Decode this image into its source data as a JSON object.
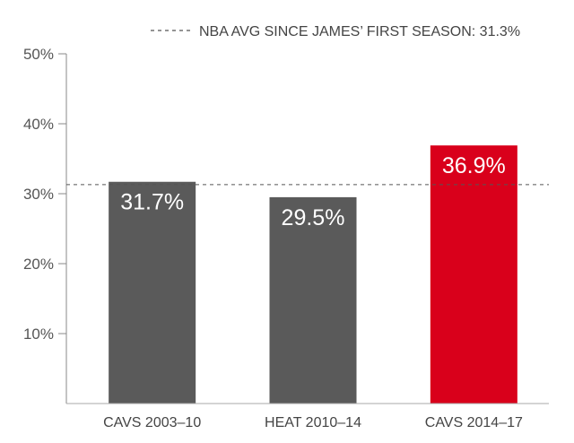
{
  "chart_data": {
    "type": "bar",
    "categories": [
      "CAVS 2003–10",
      "HEAT 2010–14",
      "CAVS 2014–17"
    ],
    "values": [
      31.7,
      29.5,
      36.9
    ],
    "value_labels": [
      "31.7%",
      "29.5%",
      "36.9%"
    ],
    "colors": [
      "#5a5a5a",
      "#5a5a5a",
      "#d9001b"
    ],
    "ylim": [
      0,
      50
    ],
    "yticks": [
      10,
      20,
      30,
      40,
      50
    ],
    "ytick_labels": [
      "10%",
      "20%",
      "30%",
      "40%",
      "50%"
    ],
    "reference_line": {
      "value": 31.3,
      "label": "NBA AVG SINCE JAMES’ FIRST SEASON: 31.3%",
      "style": "dashed"
    },
    "legend_placement": "top-right",
    "grid": false
  }
}
